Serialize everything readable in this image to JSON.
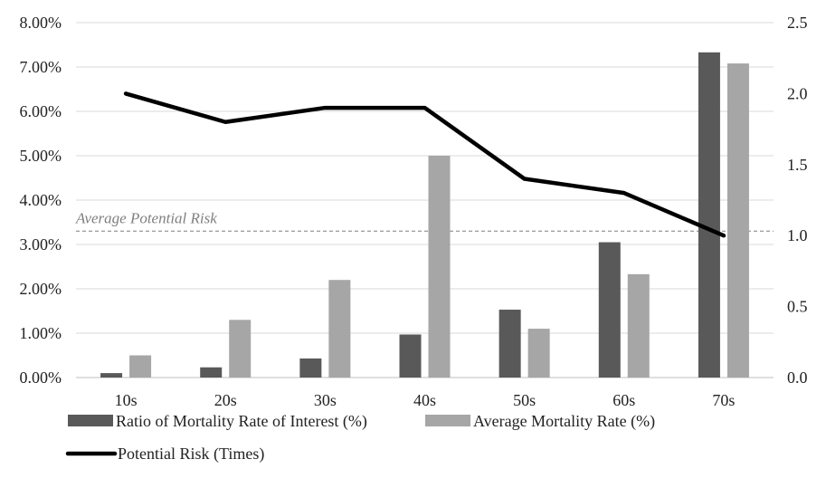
{
  "chart_data": {
    "type": "bar",
    "categories": [
      "10s",
      "20s",
      "30s",
      "40s",
      "50s",
      "60s",
      "70s"
    ],
    "series": [
      {
        "name": "Ratio of Mortality Rate of Interest (%)",
        "type": "bar",
        "axis": "left",
        "color": "#595959",
        "values": [
          0.1,
          0.23,
          0.43,
          0.97,
          1.53,
          3.05,
          7.33
        ]
      },
      {
        "name": "Average Mortality Rate (%)",
        "type": "bar",
        "axis": "left",
        "color": "#a6a6a6",
        "values": [
          0.5,
          1.3,
          2.2,
          5.0,
          1.1,
          2.33,
          7.08
        ]
      },
      {
        "name": "Potential Risk (Times)",
        "type": "line",
        "axis": "right",
        "color": "#000000",
        "values": [
          2.0,
          1.8,
          1.9,
          1.9,
          1.4,
          1.3,
          1.0
        ]
      }
    ],
    "y_left": {
      "min": 0,
      "max": 8,
      "step": 1,
      "unit": "%",
      "ticks": [
        "0.00%",
        "1.00%",
        "2.00%",
        "3.00%",
        "4.00%",
        "5.00%",
        "6.00%",
        "7.00%",
        "8.00%"
      ]
    },
    "y_right": {
      "min": 0,
      "max": 2.5,
      "step": 0.5,
      "ticks": [
        "0.0",
        "0.5",
        "1.0",
        "1.5",
        "2.0",
        "2.5"
      ]
    },
    "reference_line": {
      "label": "Average Potential Risk",
      "value": 3.3,
      "axis": "left",
      "color": "#7f7f7f"
    },
    "grid": true,
    "legend_position": "bottom-left"
  }
}
